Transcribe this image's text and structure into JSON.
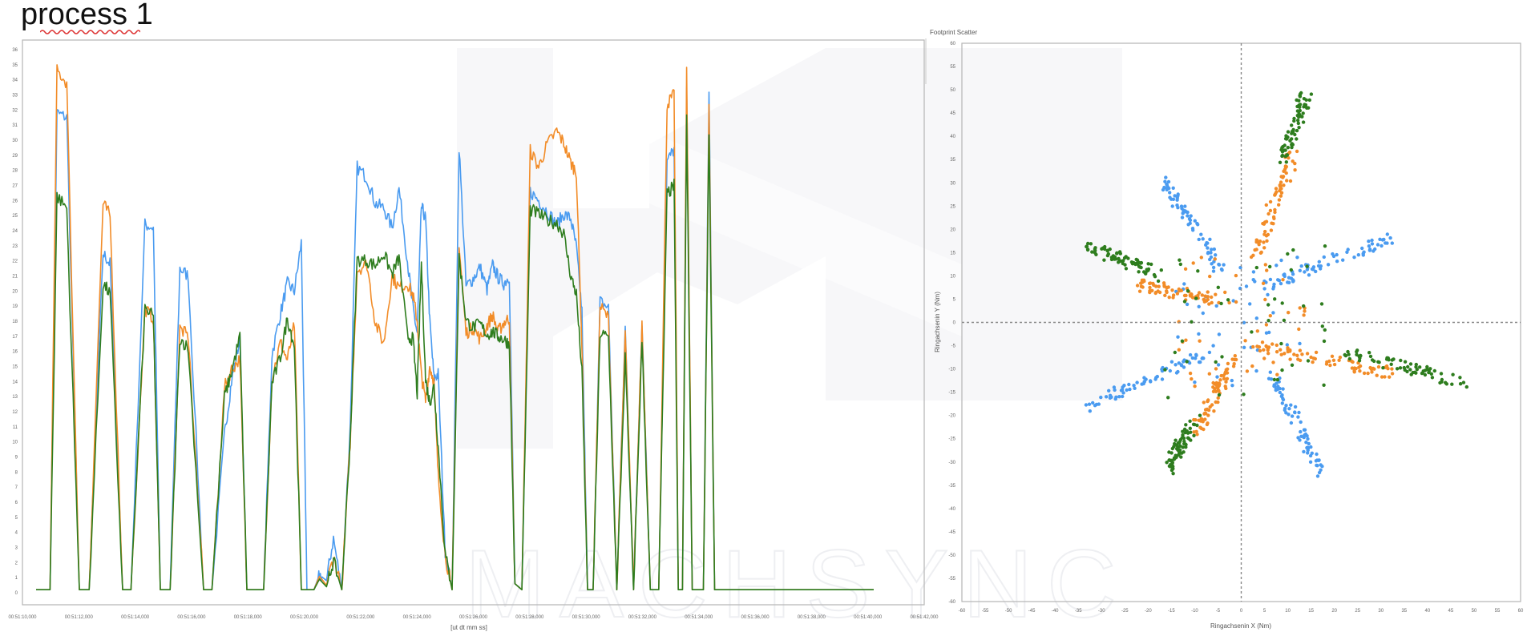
{
  "page": {
    "title": "process 1",
    "watermark": "MACHSYNC"
  },
  "chart_data": [
    {
      "type": "line",
      "title": "",
      "xlabel": "[ut dt mm ss]",
      "ylabel": "",
      "ylim": [
        0,
        36
      ],
      "grid": false,
      "legend": "none",
      "x_tick_labels": [
        "00:51:10,000",
        "00:51:12,000",
        "00:51:14,000",
        "00:51:16,000",
        "00:51:18,000",
        "00:51:20,000",
        "00:51:22,000",
        "00:51:24,000",
        "00:51:26,000",
        "00:51:28,000",
        "00:51:30,000",
        "00:51:32,000",
        "00:51:34,000",
        "00:51:36,000",
        "00:51:38,000",
        "00:51:40,000",
        "00:51:42,000"
      ],
      "y_tick_labels": [
        "0",
        "1",
        "2",
        "3",
        "4",
        "5",
        "6",
        "7",
        "8",
        "9",
        "10",
        "11",
        "12",
        "13",
        "14",
        "15",
        "16",
        "17",
        "18",
        "19",
        "20",
        "21",
        "22",
        "23",
        "24",
        "25",
        "26",
        "27",
        "28",
        "29",
        "30",
        "31",
        "32",
        "33",
        "34",
        "35",
        "36"
      ],
      "x": [
        0.0,
        1.0,
        1.5,
        2.2,
        3.1,
        3.8,
        4.8,
        5.3,
        6.2,
        6.8,
        7.8,
        8.4,
        8.9,
        9.6,
        10.3,
        10.9,
        12.0,
        12.6,
        13.5,
        14.0,
        14.6,
        15.1,
        15.6,
        16.3,
        16.9,
        17.5,
        18.0,
        18.5,
        19.0,
        19.4,
        19.9,
        20.3,
        20.8,
        21.3,
        21.9,
        22.5,
        23.0,
        23.7,
        24.3,
        24.9,
        25.5,
        26.0,
        26.6,
        27.0,
        27.3,
        27.6,
        27.9,
        28.2,
        28.5,
        28.8,
        29.3,
        29.8,
        30.3,
        30.8,
        31.3,
        31.8,
        32.3,
        32.7,
        33.1,
        33.5,
        33.9,
        34.3,
        34.8,
        35.4,
        36.0,
        36.6,
        37.3,
        37.8,
        38.3,
        38.7,
        39.1,
        39.5,
        39.9,
        40.4,
        41.0,
        41.6,
        42.2,
        42.8,
        43.4,
        44.0,
        44.6,
        45.2,
        45.7,
        46.0,
        46.3,
        46.6,
        47.0,
        47.4,
        47.8,
        48.2,
        48.6,
        49.0,
        49.5,
        50.0,
        50.5,
        51.0,
        51.5,
        52.0,
        52.3,
        52.6,
        52.9,
        53.3,
        53.7,
        54.2,
        54.8,
        55.4,
        56.0,
        56.5,
        57.0,
        57.6,
        58.2,
        58.8,
        59.5,
        60.0
      ],
      "series": [
        {
          "color": "#4a9bf0",
          "values": [
            0.2,
            0.2,
            31.8,
            31.5,
            0.2,
            0.2,
            22.5,
            21.8,
            0.2,
            0.2,
            24.4,
            24.2,
            0.2,
            0.2,
            21.5,
            21.0,
            0.2,
            0.2,
            10.5,
            14.0,
            16.8,
            0.2,
            0.2,
            0.2,
            15.8,
            18.5,
            20.5,
            20.0,
            23.2,
            0.2,
            0.2,
            1.2,
            0.8,
            3.6,
            0.2,
            11.0,
            28.2,
            27.5,
            25.8,
            25.5,
            24.2,
            26.8,
            22.0,
            18.8,
            17.2,
            25.6,
            24.8,
            18.0,
            14.2,
            14.5,
            2.8,
            0.2,
            29.6,
            20.3,
            20.8,
            21.6,
            20.1,
            21.7,
            20.9,
            20.5,
            21.0,
            0.6,
            0.2,
            26.6,
            26.0,
            25.3,
            24.4,
            25.1,
            24.8,
            22.9,
            18.6,
            0.2,
            0.2,
            19.3,
            18.9,
            0.2,
            17.6,
            0.2,
            18.1,
            0.2,
            0.2,
            28.6,
            29.4,
            0.2,
            0.2,
            33.5,
            0.2,
            0.2,
            0.2,
            33.0,
            0.2,
            0.2,
            0.2,
            0.2,
            0.2,
            0.2,
            0.2,
            0.2,
            0.2,
            0.2,
            0.2,
            0.2,
            0.2,
            0.2,
            0.2,
            0.2,
            0.2,
            0.2,
            0.2,
            0.2,
            0.2,
            0.2,
            0.2,
            0.2
          ]
        },
        {
          "color": "#f28c28",
          "values": [
            0.2,
            0.2,
            34.6,
            33.8,
            0.2,
            0.2,
            25.8,
            25.0,
            0.2,
            0.2,
            18.8,
            18.2,
            0.2,
            0.2,
            17.5,
            17.0,
            0.2,
            0.2,
            13.6,
            14.8,
            15.5,
            0.2,
            0.2,
            0.2,
            14.2,
            16.6,
            15.4,
            17.8,
            0.2,
            0.2,
            0.2,
            1.1,
            0.5,
            2.4,
            0.2,
            10.0,
            21.4,
            21.8,
            17.9,
            16.5,
            21.0,
            20.2,
            20.5,
            19.7,
            18.0,
            14.4,
            12.7,
            15.0,
            14.0,
            7.8,
            2.5,
            0.2,
            23.0,
            17.2,
            17.6,
            16.8,
            17.7,
            18.4,
            17.3,
            17.9,
            18.2,
            0.6,
            0.2,
            29.3,
            28.2,
            29.7,
            30.6,
            29.8,
            28.5,
            27.9,
            16.4,
            0.2,
            0.2,
            19.0,
            18.2,
            0.2,
            17.2,
            0.2,
            17.8,
            0.2,
            0.2,
            32.4,
            33.0,
            0.2,
            0.2,
            34.5,
            0.2,
            0.2,
            0.2,
            32.1,
            0.2,
            0.2,
            0.2,
            0.2,
            0.2,
            0.2,
            0.2,
            0.2,
            0.2,
            0.2,
            0.2,
            0.2,
            0.2,
            0.2,
            0.2,
            0.2,
            0.2,
            0.2,
            0.2,
            0.2,
            0.2,
            0.2,
            0.2,
            0.2
          ]
        },
        {
          "color": "#2e7d1e",
          "values": [
            0.2,
            0.2,
            26.3,
            25.5,
            0.2,
            0.2,
            20.5,
            19.8,
            0.2,
            0.2,
            18.8,
            18.3,
            0.2,
            0.2,
            16.9,
            16.2,
            0.2,
            0.2,
            13.0,
            14.6,
            17.0,
            0.2,
            0.2,
            0.2,
            13.9,
            15.6,
            18.2,
            16.4,
            0.2,
            0.2,
            0.2,
            0.9,
            0.4,
            2.1,
            0.2,
            10.2,
            22.1,
            22.0,
            21.7,
            22.5,
            21.1,
            22.2,
            17.0,
            16.8,
            13.2,
            21.8,
            14.1,
            12.6,
            13.7,
            9.7,
            2.6,
            0.2,
            22.3,
            18.0,
            17.6,
            17.8,
            17.1,
            17.3,
            17.0,
            16.8,
            16.5,
            0.6,
            0.2,
            25.4,
            25.1,
            24.7,
            24.5,
            23.8,
            21.0,
            19.8,
            14.6,
            0.2,
            0.2,
            17.2,
            16.9,
            0.2,
            15.6,
            0.2,
            16.7,
            0.2,
            0.2,
            26.4,
            27.0,
            0.2,
            0.2,
            31.5,
            0.2,
            0.2,
            0.2,
            30.8,
            0.2,
            0.2,
            0.2,
            0.2,
            0.2,
            0.2,
            0.2,
            0.2,
            0.2,
            0.2,
            0.2,
            0.2,
            0.2,
            0.2,
            0.2,
            0.2,
            0.2,
            0.2,
            0.2,
            0.2,
            0.2,
            0.2,
            0.2,
            0.2
          ]
        }
      ]
    },
    {
      "type": "scatter",
      "title": "Footprint Scatter",
      "xlabel": "Ringachsenin X (Nm)",
      "ylabel": "Ringachsenin Y (Nm)",
      "xlim": [
        -60,
        60
      ],
      "ylim": [
        -60,
        60
      ],
      "grid": false,
      "legend": "none",
      "x_tick_labels": [
        "-60",
        "-55",
        "-50",
        "-45",
        "-40",
        "-35",
        "-30",
        "-25",
        "-20",
        "-15",
        "-10",
        "-5",
        "0",
        "5",
        "10",
        "15",
        "20",
        "25",
        "30",
        "35",
        "40",
        "45",
        "50",
        "55",
        "60"
      ],
      "y_tick_labels": [
        "60",
        "55",
        "50",
        "45",
        "40",
        "35",
        "30",
        "25",
        "20",
        "15",
        "10",
        "5",
        "0",
        "-5",
        "-10",
        "-15",
        "-20",
        "-25",
        "-30",
        "-35",
        "-40",
        "-45",
        "-50",
        "-55",
        "-60"
      ],
      "series": [
        {
          "color": "#4a9bf0",
          "arms": [
            {
              "from": [
                -5,
                12
              ],
              "to": [
                -17,
                31
              ]
            },
            {
              "from": [
                5,
                8
              ],
              "to": [
                32,
                18
              ]
            },
            {
              "from": [
                -6,
                -6
              ],
              "to": [
                -33,
                -18
              ]
            },
            {
              "from": [
                7,
                -12
              ],
              "to": [
                17,
                -32
              ]
            }
          ]
        },
        {
          "color": "#f28c28",
          "arms": [
            {
              "from": [
                3,
                14
              ],
              "to": [
                11,
                36
              ]
            },
            {
              "from": [
                -5,
                5
              ],
              "to": [
                -22,
                8
              ]
            },
            {
              "from": [
                4,
                -5
              ],
              "to": [
                33,
                -11
              ]
            },
            {
              "from": [
                -2,
                -8
              ],
              "to": [
                -10,
                -24
              ]
            }
          ]
        },
        {
          "color": "#2e7d1e",
          "arms": [
            {
              "from": [
                9,
                35
              ],
              "to": [
                14,
                49
              ]
            },
            {
              "from": [
                -18,
                11
              ],
              "to": [
                -33,
                16
              ]
            },
            {
              "from": [
                22,
                -6
              ],
              "to": [
                48,
                -13
              ]
            },
            {
              "from": [
                -10,
                -21
              ],
              "to": [
                -16,
                -32
              ]
            }
          ],
          "center_spread": 18
        }
      ]
    }
  ]
}
